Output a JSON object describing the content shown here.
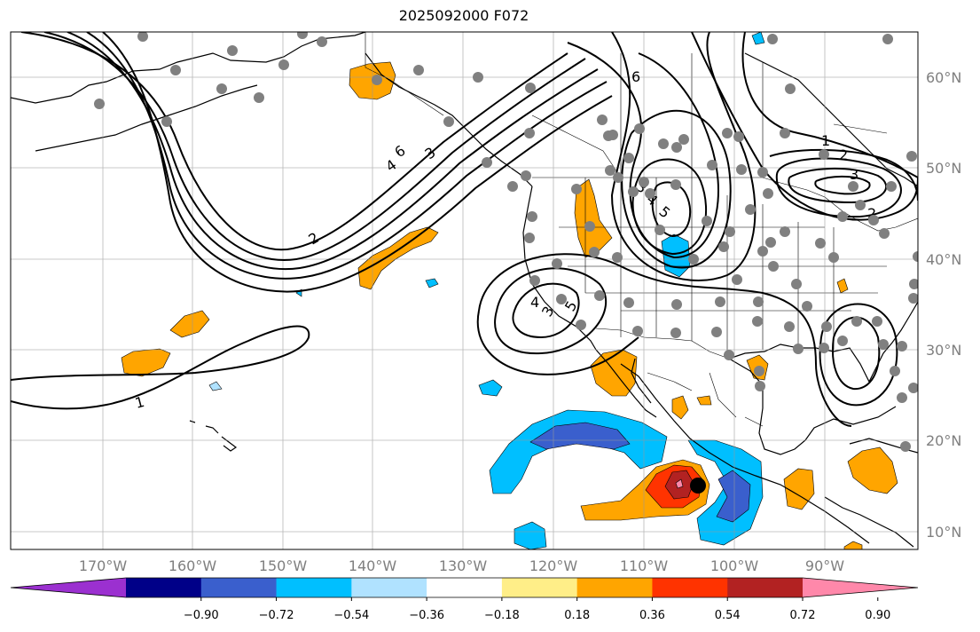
{
  "title": "2025092000 F072",
  "map": {
    "projection": "plate-carree",
    "lon_range": [
      -180,
      -79
    ],
    "lat_range": [
      8,
      65
    ],
    "lon_ticks": [
      "170°W",
      "160°W",
      "150°W",
      "140°W",
      "130°W",
      "120°W",
      "110°W",
      "100°W",
      "90°W"
    ],
    "lat_ticks": [
      "10°N",
      "20°N",
      "30°N",
      "40°N",
      "50°N",
      "60°N"
    ],
    "gridlines": true
  },
  "contour_labels": [
    "6",
    "4",
    "3",
    "2",
    "1",
    "6",
    "5",
    "4",
    "3",
    "2",
    "1",
    "2",
    "3",
    "4",
    "5",
    "3",
    "2",
    "1"
  ],
  "colorbar": {
    "colors": [
      "#9b30d0",
      "#000088",
      "#3a5fcd",
      "#00bfff",
      "#b0e2ff",
      "#ffffff",
      "#ffee88",
      "#ffa500",
      "#ff3300",
      "#b22222",
      "#ff88aa"
    ],
    "tick_labels": [
      "−0.90",
      "−0.72",
      "−0.54",
      "−0.36",
      "−0.18",
      "0.18",
      "0.36",
      "0.54",
      "0.72",
      "0.90"
    ],
    "extend": "both"
  },
  "storm_marker_color": "#000000",
  "station_color": "#808080"
}
